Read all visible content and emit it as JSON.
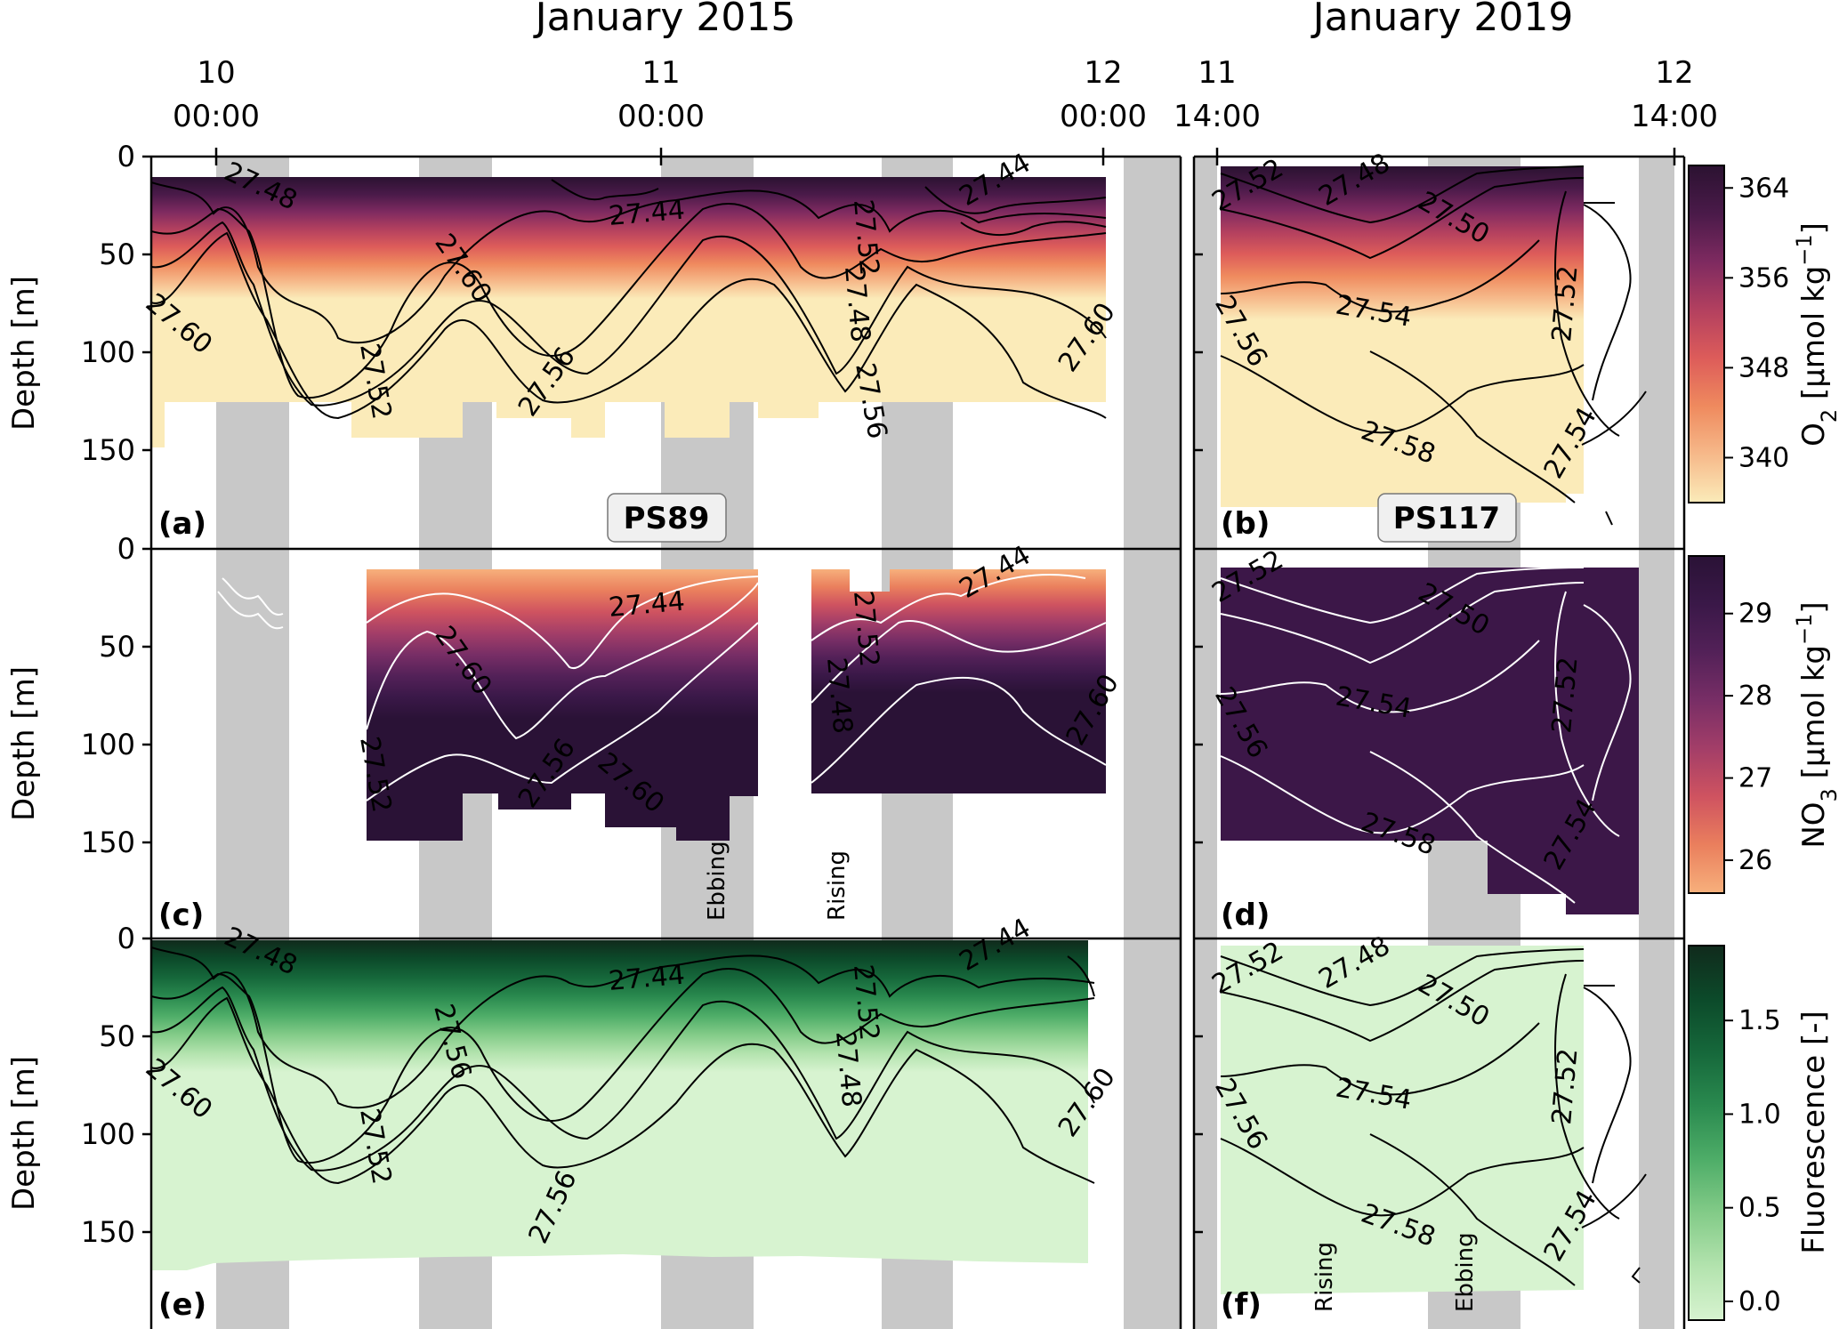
{
  "chart_data": {
    "type": "heatmap",
    "headings": {
      "left": "January 2015",
      "right": "January 2019"
    },
    "ylabel": "Depth [m]",
    "ylim": [
      0,
      200
    ],
    "yticks": [
      "0",
      "50",
      "100",
      "150"
    ],
    "time_axis_left": [
      {
        "day": "10",
        "time": "00:00"
      },
      {
        "day": "11",
        "time": "00:00"
      },
      {
        "day": "12",
        "time": "00:00"
      }
    ],
    "time_axis_right": [
      {
        "day": "11",
        "time": "14:00"
      },
      {
        "day": "12",
        "time": "14:00"
      }
    ],
    "cruise_labels": [
      "PS89",
      "PS117"
    ],
    "panels": [
      {
        "id": "(a)",
        "variable": "O2",
        "cruise": "PS89"
      },
      {
        "id": "(b)",
        "variable": "O2",
        "cruise": "PS117"
      },
      {
        "id": "(c)",
        "variable": "NO3",
        "cruise": "PS89"
      },
      {
        "id": "(d)",
        "variable": "NO3",
        "cruise": "PS117"
      },
      {
        "id": "(e)",
        "variable": "Fluorescence",
        "cruise": "PS89"
      },
      {
        "id": "(f)",
        "variable": "Fluorescence",
        "cruise": "PS117"
      }
    ],
    "tide_annotations": {
      "c": [
        "Ebbing",
        "Rising"
      ],
      "f": [
        "Rising",
        "Ebbing"
      ]
    },
    "contour_labels_left": [
      "27.48",
      "27.44",
      "27.60",
      "27.52",
      "27.56",
      "27.60",
      "27.52",
      "27.48",
      "27.56",
      "27.44",
      "27.60"
    ],
    "contour_labels_right": [
      "27.52",
      "27.48",
      "27.50",
      "27.56",
      "27.54",
      "27.52",
      "27.58",
      "27.54"
    ],
    "colorbars": [
      {
        "variable": "O2",
        "label_main": "O",
        "label_sub": "2",
        "label_tail": " [µmol kg",
        "label_sup": "−1",
        "label_end": "]",
        "ticks": [
          340,
          348,
          356,
          364
        ],
        "range": [
          336,
          366
        ],
        "colors": [
          "#fbebb9",
          "#f6b98a",
          "#ef8a5e",
          "#dd5c5a",
          "#b3405f",
          "#7e2a60",
          "#4a1a49",
          "#2b1231"
        ]
      },
      {
        "variable": "NO3",
        "label_main": "NO",
        "label_sub": "3",
        "label_tail": " [µmol kg",
        "label_sup": "−1",
        "label_end": "]",
        "ticks": [
          26,
          27,
          28,
          29
        ],
        "range": [
          25.6,
          29.7
        ],
        "colors": [
          "#f7b07c",
          "#ea7f5d",
          "#cf5360",
          "#a33e68",
          "#782e66",
          "#532158",
          "#3a1848",
          "#2a1236"
        ]
      },
      {
        "variable": "Fluorescence",
        "label_main": "Fluorescence [-]",
        "ticks": [
          0.0,
          0.5,
          1.0,
          1.5
        ],
        "range": [
          -0.1,
          1.9
        ],
        "colors": [
          "#d7f3d0",
          "#b3e3ae",
          "#83cb88",
          "#4ead68",
          "#2a8a4f",
          "#16683b",
          "#0c4a2a",
          "#102a1c"
        ]
      }
    ]
  },
  "colors": {
    "night_shading": "#c8c8c8",
    "o2_background": "#fbebb9",
    "no3_background": "#3c1748",
    "fluo_background": "#d7f3d0"
  }
}
